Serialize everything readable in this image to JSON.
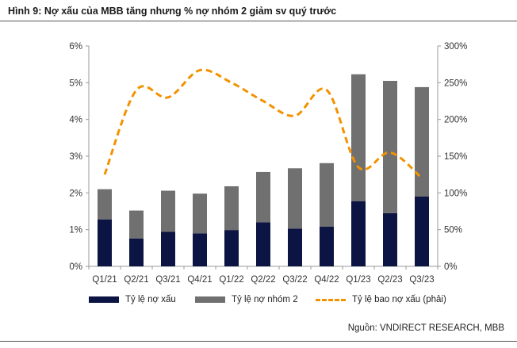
{
  "title": "Hình 9: Nợ xấu của MBB tăng nhưng % nợ nhóm 2 giảm sv quý trước",
  "source": "Nguồn: VNDIRECT RESEARCH, MBB",
  "chart_data": {
    "type": "bar",
    "stacked": true,
    "categories": [
      "Q1/21",
      "Q2/21",
      "Q3/21",
      "Q4/21",
      "Q1/22",
      "Q2/22",
      "Q3/22",
      "Q4/22",
      "Q1/23",
      "Q2/23",
      "Q3/23"
    ],
    "series": [
      {
        "name": "Tỷ lệ nợ xấu",
        "type": "bar",
        "axis": "left",
        "color": "#0B1442",
        "values": [
          1.28,
          0.76,
          0.94,
          0.9,
          0.99,
          1.2,
          1.03,
          1.08,
          1.77,
          1.45,
          1.9
        ]
      },
      {
        "name": "Tỷ lệ nợ nhóm 2",
        "type": "bar",
        "axis": "left",
        "color": "#707070",
        "values": [
          0.82,
          0.76,
          1.12,
          1.08,
          1.19,
          1.37,
          1.64,
          1.73,
          3.46,
          3.6,
          2.98
        ]
      },
      {
        "name": "Tỷ lệ bao nợ xấu (phải)",
        "type": "line",
        "axis": "right",
        "color": "#F39200",
        "dashed": true,
        "values": [
          125,
          240,
          230,
          267,
          250,
          225,
          205,
          240,
          135,
          155,
          120
        ]
      }
    ],
    "y_left": {
      "min": 0,
      "max": 6,
      "ticks": [
        "0%",
        "1%",
        "2%",
        "3%",
        "4%",
        "5%",
        "6%"
      ]
    },
    "y_right": {
      "min": 0,
      "max": 300,
      "ticks": [
        "0%",
        "50%",
        "100%",
        "150%",
        "200%",
        "250%",
        "300%"
      ]
    },
    "legend_position": "bottom",
    "grid": false
  }
}
